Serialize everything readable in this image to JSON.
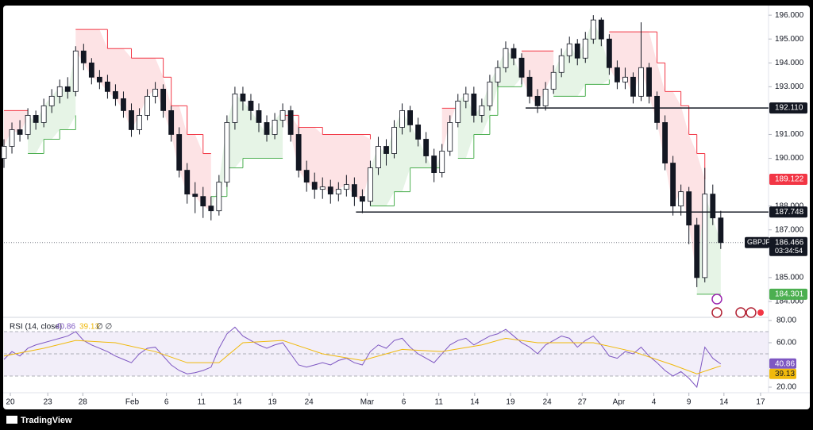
{
  "chart_data": {
    "type": "candlestick",
    "symbol": "GBPJPY",
    "up_color": "#131722",
    "down_color": "#131722",
    "grid": false,
    "xlim": [
      0,
      96
    ],
    "xticks": [
      {
        "value": 0.8,
        "label": "20"
      },
      {
        "value": 5.5,
        "label": "23"
      },
      {
        "value": 9.9,
        "label": "28"
      },
      {
        "value": 16.1,
        "label": "Feb"
      },
      {
        "value": 20.4,
        "label": "6"
      },
      {
        "value": 24.8,
        "label": "11"
      },
      {
        "value": 29.3,
        "label": "14"
      },
      {
        "value": 33.7,
        "label": "19"
      },
      {
        "value": 38.3,
        "label": "24"
      },
      {
        "value": 45.6,
        "label": "Mar"
      },
      {
        "value": 50.2,
        "label": "6"
      },
      {
        "value": 54.6,
        "label": "11"
      },
      {
        "value": 59.1,
        "label": "14"
      },
      {
        "value": 63.6,
        "label": "19"
      },
      {
        "value": 68.2,
        "label": "24"
      },
      {
        "value": 72.6,
        "label": "27"
      },
      {
        "value": 77.2,
        "label": "Apr"
      },
      {
        "value": 81.6,
        "label": "4"
      },
      {
        "value": 86.0,
        "label": "9"
      },
      {
        "value": 90.4,
        "label": "14"
      },
      {
        "value": 95.0,
        "label": "17"
      }
    ],
    "ylim": [
      183.4,
      196.37
    ],
    "yticks": [
      {
        "value": 184,
        "label": "184.000"
      },
      {
        "value": 185,
        "label": "185.000"
      },
      {
        "value": 187,
        "label": "187.000"
      },
      {
        "value": 188,
        "label": "188.000"
      },
      {
        "value": 190,
        "label": "190.000"
      },
      {
        "value": 191,
        "label": "191.000"
      },
      {
        "value": 193,
        "label": "193.000"
      },
      {
        "value": 194,
        "label": "194.000"
      },
      {
        "value": 195,
        "label": "195.000"
      },
      {
        "value": 196,
        "label": "196.000"
      }
    ],
    "ohlc": [
      [
        190.0,
        190.8,
        189.6,
        190.5
      ],
      [
        190.5,
        191.5,
        190.2,
        191.2
      ],
      [
        191.2,
        191.6,
        190.7,
        191.0
      ],
      [
        191.0,
        192.1,
        190.8,
        191.8
      ],
      [
        191.8,
        192.0,
        191.2,
        191.5
      ],
      [
        191.5,
        192.5,
        191.3,
        192.2
      ],
      [
        192.2,
        192.9,
        191.9,
        192.6
      ],
      [
        192.6,
        193.3,
        192.3,
        193.0
      ],
      [
        193.0,
        193.4,
        192.5,
        192.8
      ],
      [
        192.8,
        194.7,
        192.6,
        194.5
      ],
      [
        194.5,
        194.8,
        193.7,
        194.0
      ],
      [
        194.0,
        194.2,
        193.1,
        193.4
      ],
      [
        193.4,
        193.7,
        192.9,
        193.2
      ],
      [
        193.2,
        193.5,
        192.5,
        192.8
      ],
      [
        192.8,
        193.1,
        192.2,
        192.5
      ],
      [
        192.5,
        192.8,
        191.7,
        192.0
      ],
      [
        192.0,
        192.3,
        190.9,
        191.2
      ],
      [
        191.2,
        192.1,
        191.0,
        191.8
      ],
      [
        191.8,
        192.9,
        191.6,
        192.6
      ],
      [
        192.6,
        193.2,
        192.3,
        192.9
      ],
      [
        192.9,
        193.1,
        191.7,
        192.0
      ],
      [
        192.0,
        192.2,
        190.7,
        191.0
      ],
      [
        191.0,
        191.3,
        189.2,
        189.5
      ],
      [
        189.5,
        189.8,
        188.1,
        188.5
      ],
      [
        188.5,
        189.0,
        187.7,
        188.4
      ],
      [
        188.4,
        188.8,
        187.5,
        188.0
      ],
      [
        188.0,
        188.4,
        187.4,
        187.8
      ],
      [
        187.8,
        189.3,
        187.6,
        189.0
      ],
      [
        189.0,
        191.8,
        188.8,
        191.5
      ],
      [
        191.5,
        193.0,
        191.2,
        192.7
      ],
      [
        192.7,
        193.0,
        192.0,
        192.4
      ],
      [
        192.4,
        192.7,
        191.6,
        192.0
      ],
      [
        192.0,
        192.3,
        191.1,
        191.5
      ],
      [
        191.5,
        191.8,
        190.7,
        191.0
      ],
      [
        191.0,
        191.9,
        190.8,
        191.6
      ],
      [
        191.6,
        192.3,
        191.3,
        192.0
      ],
      [
        192.0,
        192.2,
        190.7,
        191.0
      ],
      [
        191.0,
        191.3,
        189.2,
        189.5
      ],
      [
        189.5,
        189.9,
        188.6,
        189.0
      ],
      [
        189.0,
        189.4,
        188.3,
        188.7
      ],
      [
        188.7,
        189.2,
        188.3,
        188.8
      ],
      [
        188.8,
        189.1,
        188.1,
        188.5
      ],
      [
        188.5,
        189.0,
        188.2,
        188.7
      ],
      [
        188.7,
        189.3,
        188.4,
        188.9
      ],
      [
        188.9,
        189.2,
        188.0,
        188.4
      ],
      [
        188.4,
        188.7,
        187.7,
        188.2
      ],
      [
        188.2,
        189.9,
        188.0,
        189.6
      ],
      [
        189.6,
        190.9,
        189.3,
        190.5
      ],
      [
        190.5,
        190.8,
        189.7,
        190.2
      ],
      [
        190.2,
        191.6,
        190.0,
        191.3
      ],
      [
        191.3,
        192.3,
        191.0,
        192.0
      ],
      [
        192.0,
        192.2,
        191.1,
        191.4
      ],
      [
        191.4,
        191.7,
        190.5,
        190.8
      ],
      [
        190.8,
        191.1,
        189.8,
        190.1
      ],
      [
        190.1,
        190.4,
        189.0,
        189.4
      ],
      [
        189.4,
        190.6,
        189.2,
        190.3
      ],
      [
        190.3,
        191.8,
        190.1,
        191.5
      ],
      [
        191.5,
        192.7,
        191.3,
        192.4
      ],
      [
        192.4,
        193.0,
        192.1,
        192.7
      ],
      [
        192.7,
        193.0,
        191.5,
        191.8
      ],
      [
        191.8,
        192.5,
        191.5,
        192.2
      ],
      [
        192.2,
        193.5,
        192.0,
        193.2
      ],
      [
        193.2,
        194.1,
        193.0,
        193.8
      ],
      [
        193.8,
        194.9,
        193.6,
        194.6
      ],
      [
        194.6,
        194.8,
        193.9,
        194.2
      ],
      [
        194.2,
        194.4,
        193.1,
        193.4
      ],
      [
        193.4,
        193.7,
        192.3,
        192.6
      ],
      [
        192.6,
        192.9,
        191.9,
        192.2
      ],
      [
        192.2,
        193.2,
        192.0,
        192.9
      ],
      [
        192.9,
        193.9,
        192.7,
        193.6
      ],
      [
        193.6,
        194.6,
        193.4,
        194.3
      ],
      [
        194.3,
        195.1,
        194.0,
        194.8
      ],
      [
        194.8,
        195.0,
        193.9,
        194.2
      ],
      [
        194.2,
        195.3,
        194.0,
        195.0
      ],
      [
        195.0,
        196.0,
        194.8,
        195.8
      ],
      [
        195.8,
        195.9,
        194.7,
        195.0
      ],
      [
        195.0,
        195.2,
        193.5,
        193.8
      ],
      [
        193.8,
        194.1,
        192.9,
        193.2
      ],
      [
        193.2,
        193.8,
        192.9,
        193.4
      ],
      [
        193.4,
        193.6,
        192.3,
        192.6
      ],
      [
        192.6,
        195.7,
        192.4,
        193.8
      ],
      [
        193.8,
        194.0,
        192.3,
        192.6
      ],
      [
        192.6,
        192.8,
        191.2,
        191.5
      ],
      [
        191.5,
        191.8,
        189.5,
        189.8
      ],
      [
        189.8,
        190.1,
        187.6,
        188.0
      ],
      [
        188.0,
        188.9,
        187.6,
        188.6
      ],
      [
        188.6,
        188.8,
        186.4,
        187.2
      ],
      [
        187.2,
        187.5,
        184.6,
        185.0
      ],
      [
        185.0,
        189.6,
        184.8,
        188.5
      ],
      [
        188.5,
        188.9,
        187.2,
        187.5
      ],
      [
        187.5,
        187.8,
        186.2,
        186.466
      ]
    ],
    "supertrend": [
      {
        "color": "#f23645",
        "x": [
          0,
          3
        ],
        "values": [
          192.0,
          192.0
        ]
      },
      {
        "color": "#4caf50",
        "x": [
          3,
          5,
          7,
          9
        ],
        "values": [
          190.2,
          190.8,
          191.2,
          191.8
        ]
      },
      {
        "color": "#f23645",
        "x": [
          9,
          13,
          16,
          20,
          21,
          23,
          25,
          26
        ],
        "values": [
          195.4,
          194.6,
          194.2,
          193.4,
          192.2,
          191.0,
          190.2,
          190.2
        ]
      },
      {
        "color": "#4caf50",
        "x": [
          26,
          28,
          30,
          35
        ],
        "values": [
          188.4,
          189.6,
          190.0,
          190.0
        ]
      },
      {
        "color": "#f23645",
        "x": [
          35,
          37,
          40,
          46
        ],
        "values": [
          191.8,
          191.3,
          191.0,
          190.8
        ]
      },
      {
        "color": "#4caf50",
        "x": [
          46,
          49,
          51,
          55
        ],
        "values": [
          188.0,
          188.6,
          189.6,
          189.6
        ]
      },
      {
        "color": "#f23645",
        "x": [
          55,
          57
        ],
        "values": [
          192.1,
          192.1
        ]
      },
      {
        "color": "#4caf50",
        "x": [
          57,
          59,
          61,
          62,
          65
        ],
        "values": [
          190.0,
          191.0,
          191.8,
          193.0,
          193.4
        ]
      },
      {
        "color": "#f23645",
        "x": [
          65,
          69
        ],
        "values": [
          194.5,
          194.5
        ]
      },
      {
        "color": "#4caf50",
        "x": [
          69,
          73,
          76
        ],
        "values": [
          192.6,
          193.1,
          193.3
        ]
      },
      {
        "color": "#f23645",
        "x": [
          76,
          81,
          82,
          83,
          85,
          86,
          87,
          88
        ],
        "values": [
          195.3,
          195.3,
          194.0,
          192.8,
          192.2,
          191.0,
          190.2,
          189.122
        ]
      },
      {
        "color": "#4caf50",
        "x": [
          87,
          90
        ],
        "values": [
          184.301,
          184.301
        ]
      }
    ],
    "levels": [
      {
        "value": 192.11,
        "label": "192.110",
        "start": 65.5
      },
      {
        "value": 187.748,
        "label": "187.748",
        "start": 44.2
      }
    ],
    "last_price": {
      "symbol": "GBPJPY",
      "value": 186.466,
      "countdown": "03:34:54"
    },
    "rsi": {
      "label": "RSI (14, close)",
      "extra": "∅ ∅",
      "color": "#7e57c2",
      "ylim": [
        15,
        81.4
      ],
      "yticks": [
        {
          "value": 20,
          "label": "20.00"
        },
        {
          "value": 60,
          "label": "60.00"
        },
        {
          "value": 80,
          "label": "80.00"
        }
      ],
      "band": [
        30,
        70
      ],
      "middle": 50,
      "values": [
        45,
        52,
        48,
        55,
        58,
        60,
        62,
        64,
        66,
        70,
        62,
        58,
        55,
        52,
        48,
        45,
        42,
        50,
        55,
        56,
        48,
        40,
        35,
        32,
        33,
        35,
        38,
        55,
        68,
        74,
        66,
        62,
        58,
        55,
        58,
        60,
        50,
        40,
        38,
        40,
        42,
        40,
        44,
        46,
        42,
        40,
        52,
        58,
        55,
        62,
        64,
        56,
        50,
        46,
        42,
        50,
        58,
        62,
        64,
        58,
        62,
        66,
        68,
        72,
        66,
        60,
        56,
        50,
        58,
        62,
        66,
        64,
        56,
        62,
        66,
        58,
        48,
        46,
        52,
        50,
        56,
        48,
        42,
        35,
        30,
        34,
        28,
        20,
        56,
        46,
        40.86
      ],
      "ma": {
        "color": "#f0b90b",
        "x": [
          0,
          5,
          9,
          14,
          19,
          23,
          27,
          30,
          35,
          40,
          45,
          50,
          55,
          60,
          63,
          67,
          70,
          74,
          79,
          84,
          87,
          90
        ],
        "values": [
          48,
          55,
          62,
          60,
          52,
          42,
          42,
          60,
          62,
          50,
          44,
          54,
          52,
          58,
          64,
          60,
          60,
          60,
          52,
          40,
          32,
          39.13
        ]
      }
    }
  },
  "footer": {
    "brand": "TradingView"
  }
}
